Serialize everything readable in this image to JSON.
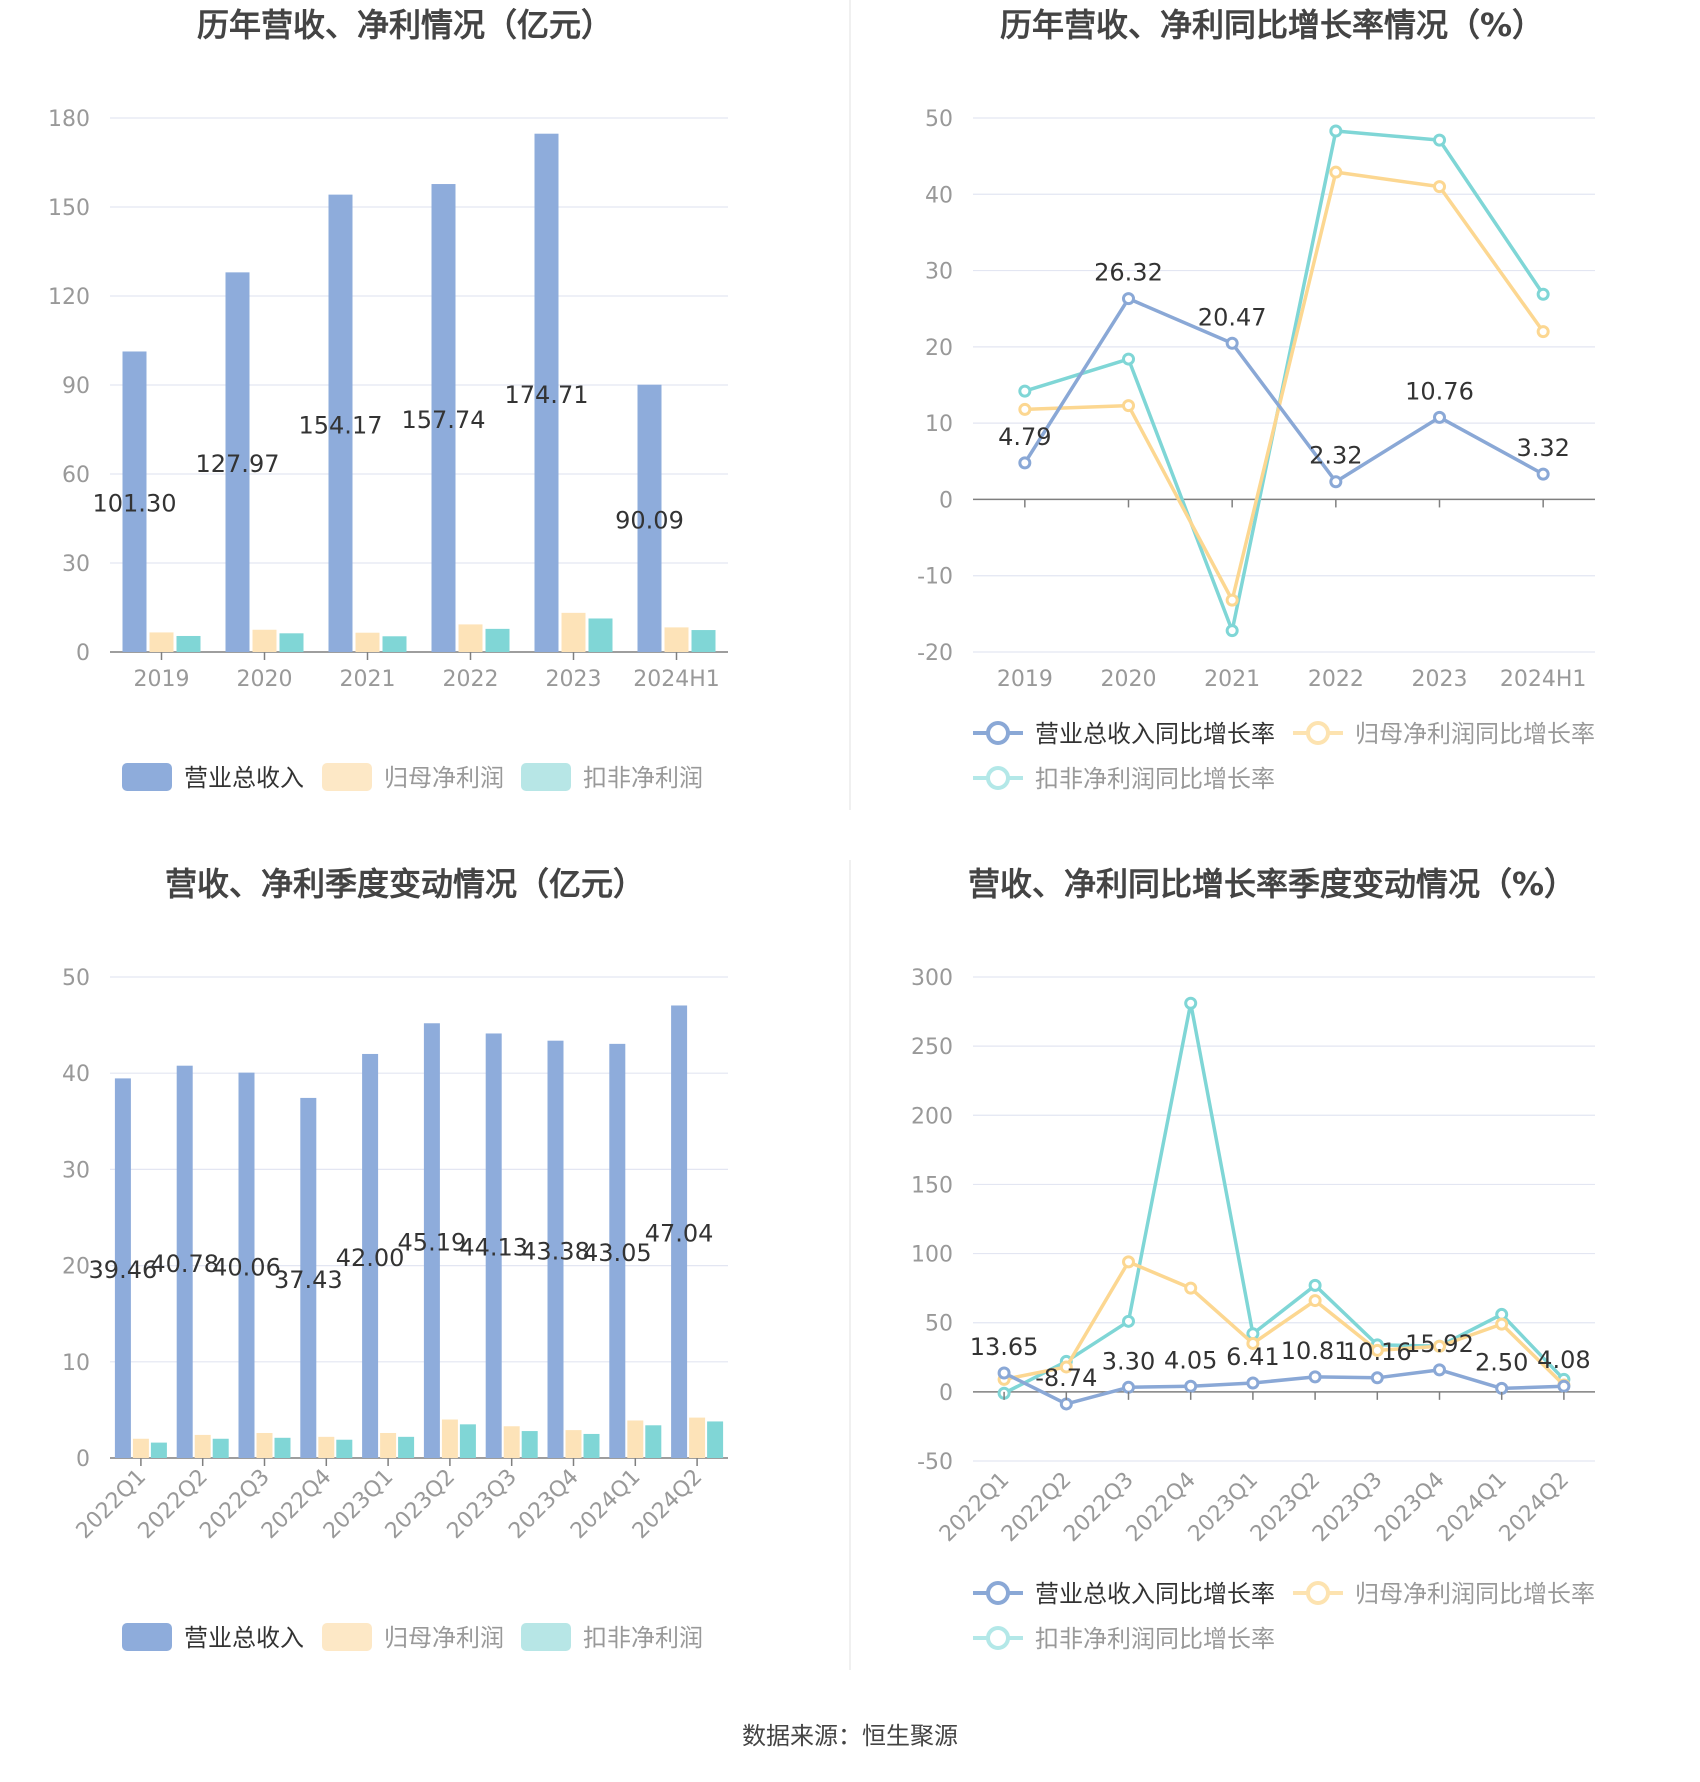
{
  "source": "数据来源：恒生聚源",
  "colors": {
    "revenue": "#8eacdb",
    "net": "#fde3b8",
    "deducted": "#80d6d6",
    "line_rev": "#8aa8d6",
    "line_net": "#fcd791",
    "line_ded": "#7fd6d6",
    "grid": "#e3e6f2",
    "axis": "#7f7f7f",
    "tick": "#999999",
    "title": "#444444"
  },
  "chart_data": [
    {
      "type": "bar",
      "title": "历年营收、净利情况（亿元）",
      "categories": [
        "2019",
        "2020",
        "2021",
        "2022",
        "2023",
        "2024H1"
      ],
      "ylim": [
        0,
        180
      ],
      "yticks": [
        0,
        30,
        60,
        90,
        120,
        150,
        180
      ],
      "series": [
        {
          "name": "营业总收入",
          "values": [
            101.3,
            127.97,
            154.17,
            157.74,
            174.71,
            90.09
          ],
          "labels": [
            "101.30",
            "127.97",
            "154.17",
            "157.74",
            "174.71",
            "90.09"
          ]
        },
        {
          "name": "归母净利润",
          "values": [
            6.6,
            7.5,
            6.5,
            9.3,
            13.2,
            8.3
          ]
        },
        {
          "name": "扣非净利润",
          "values": [
            5.4,
            6.3,
            5.3,
            7.8,
            11.3,
            7.4
          ]
        }
      ],
      "legend": [
        "营业总收入",
        "归母净利润",
        "扣非净利润"
      ]
    },
    {
      "type": "line",
      "title": "历年营收、净利同比增长率情况（%）",
      "categories": [
        "2019",
        "2020",
        "2021",
        "2022",
        "2023",
        "2024H1"
      ],
      "ylim": [
        -20,
        50
      ],
      "yticks": [
        -20,
        -10,
        0,
        10,
        20,
        30,
        40,
        50
      ],
      "series": [
        {
          "name": "营业总收入同比增长率",
          "values": [
            4.79,
            26.32,
            20.47,
            2.32,
            10.76,
            3.32
          ],
          "labels": [
            "4.79",
            "26.32",
            "20.47",
            "2.32",
            "10.76",
            "3.32"
          ]
        },
        {
          "name": "归母净利润同比增长率",
          "values": [
            11.8,
            12.3,
            -13.2,
            42.9,
            41.0,
            22.0
          ]
        },
        {
          "name": "扣非净利润同比增长率",
          "values": [
            14.2,
            18.4,
            -17.2,
            48.3,
            47.1,
            26.9
          ]
        }
      ],
      "legend": [
        "营业总收入同比增长率",
        "归母净利润同比增长率",
        "扣非净利润同比增长率"
      ]
    },
    {
      "type": "bar",
      "title": "营收、净利季度变动情况（亿元）",
      "categories": [
        "2022Q1",
        "2022Q2",
        "2022Q3",
        "2022Q4",
        "2023Q1",
        "2023Q2",
        "2023Q3",
        "2023Q4",
        "2024Q1",
        "2024Q2"
      ],
      "ylim": [
        0,
        50
      ],
      "yticks": [
        0,
        10,
        20,
        30,
        40,
        50
      ],
      "series": [
        {
          "name": "营业总收入",
          "values": [
            39.46,
            40.78,
            40.06,
            37.43,
            42.0,
            45.19,
            44.13,
            43.38,
            43.05,
            47.04
          ],
          "labels": [
            "39.46",
            "40.78",
            "40.06",
            "37.43",
            "42.00",
            "45.19",
            "44.13",
            "43.38",
            "43.05",
            "47.04"
          ]
        },
        {
          "name": "归母净利润",
          "values": [
            2.0,
            2.4,
            2.6,
            2.2,
            2.6,
            4.0,
            3.3,
            2.9,
            3.9,
            4.2
          ]
        },
        {
          "name": "扣非净利润",
          "values": [
            1.6,
            2.0,
            2.1,
            1.9,
            2.2,
            3.5,
            2.8,
            2.5,
            3.4,
            3.8
          ]
        }
      ],
      "legend": [
        "营业总收入",
        "归母净利润",
        "扣非净利润"
      ]
    },
    {
      "type": "line",
      "title": "营收、净利同比增长率季度变动情况（%）",
      "categories": [
        "2022Q1",
        "2022Q2",
        "2022Q3",
        "2022Q4",
        "2023Q1",
        "2023Q2",
        "2023Q3",
        "2023Q4",
        "2024Q1",
        "2024Q2"
      ],
      "ylim": [
        -50,
        300
      ],
      "yticks": [
        -50,
        0,
        50,
        100,
        150,
        200,
        250,
        300
      ],
      "series": [
        {
          "name": "营业总收入同比增长率",
          "values": [
            13.65,
            -8.74,
            3.3,
            4.05,
            6.41,
            10.81,
            10.16,
            15.92,
            2.5,
            4.08
          ],
          "labels": [
            "13.65",
            "-8.74",
            "3.30",
            "4.05",
            "6.41",
            "10.81",
            "10.16",
            "15.92",
            "2.50",
            "4.08"
          ]
        },
        {
          "name": "归母净利润同比增长率",
          "values": [
            9,
            18,
            94,
            75,
            35,
            66,
            30,
            33,
            49,
            5
          ]
        },
        {
          "name": "扣非净利润同比增长率",
          "values": [
            -1,
            22,
            51,
            281,
            42,
            77,
            34,
            33,
            56,
            9
          ]
        }
      ],
      "legend": [
        "营业总收入同比增长率",
        "归母净利润同比增长率",
        "扣非净利润同比增长率"
      ]
    }
  ]
}
